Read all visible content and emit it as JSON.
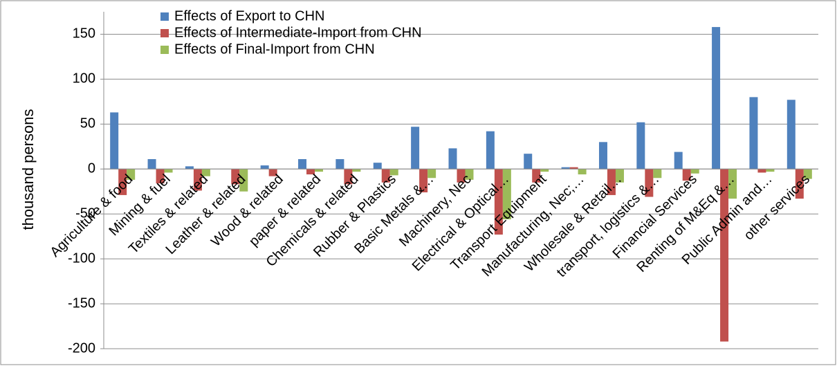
{
  "chart_data": {
    "type": "bar",
    "y_label": "thousand persons",
    "categories": [
      "Agriculture & food",
      "Mining & fuel",
      "Textiles & related",
      "Leather & related",
      "Wood & related",
      "paper & related",
      "Chemicals & related",
      "Rubber & Plastics",
      "Basic Metals &…",
      "Machinery, Nec",
      "Electrical & Optical…",
      "Transport Equipment",
      "Manufacturing, Nec;…",
      "Wholesale & Retail…",
      "transport, logistics &…",
      "Financial Services",
      "Renting of M&Eq &…",
      "Public Admin and…",
      "other services"
    ],
    "series": [
      {
        "name": "Effects of Export to CHN",
        "color": "#4f81bd",
        "values": [
          63,
          11,
          3,
          0,
          4,
          11,
          11,
          7,
          47,
          23,
          42,
          17,
          2,
          30,
          52,
          19,
          158,
          80,
          77
        ]
      },
      {
        "name": "Effects of Intermediate-Import from CHN",
        "color": "#c0504d",
        "values": [
          -29,
          -16,
          -24,
          -17,
          -8,
          -6,
          -17,
          -15,
          -26,
          -15,
          -73,
          -15,
          2,
          -29,
          -31,
          -13,
          -192,
          -4,
          -33
        ]
      },
      {
        "name": "Effects of Final-Import from CHN",
        "color": "#9bbb59",
        "values": [
          -12,
          -4,
          -8,
          -25,
          0,
          -3,
          -3,
          -7,
          -10,
          -12,
          -56,
          -3,
          -6,
          -15,
          -10,
          -5,
          -33,
          -3,
          -11
        ]
      }
    ],
    "ylim": [
      -200,
      175
    ],
    "yticks": [
      -200,
      -150,
      -100,
      -50,
      0,
      50,
      100,
      150
    ],
    "grid": true,
    "legend": "top-left"
  }
}
